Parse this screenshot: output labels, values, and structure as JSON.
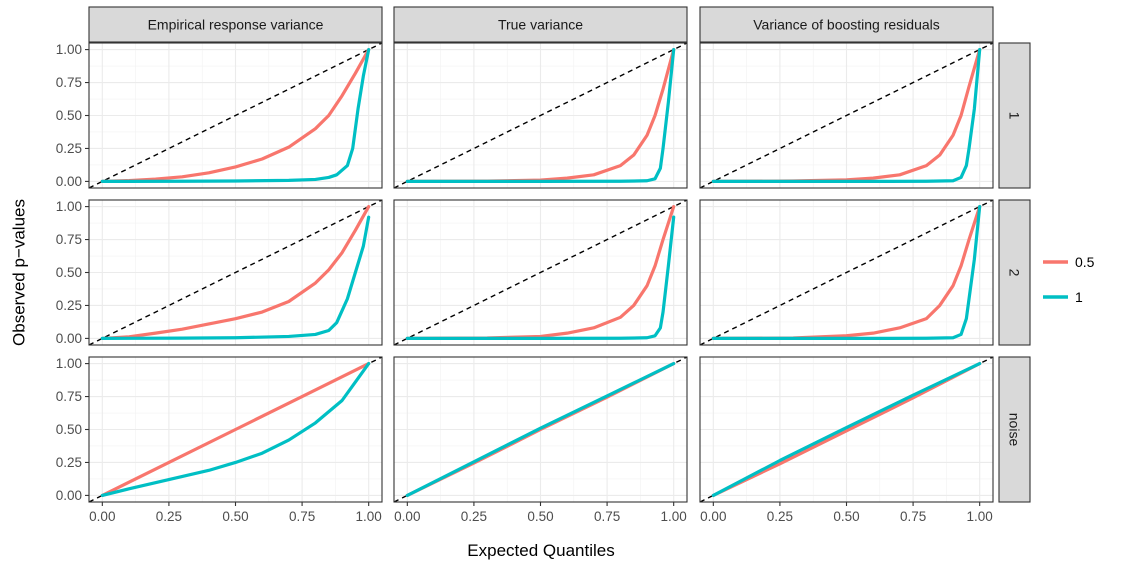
{
  "chart_data": {
    "type": "line",
    "xlabel": "Expected Quantiles",
    "ylabel": "Observed p−values",
    "xlim": [
      0,
      1
    ],
    "ylim": [
      0,
      1
    ],
    "x_ticks": [
      0,
      0.25,
      0.5,
      0.75,
      1
    ],
    "x_tick_labels": [
      "0.00",
      "0.25",
      "0.50",
      "0.75",
      "1.00"
    ],
    "y_ticks": [
      0,
      0.25,
      0.5,
      0.75,
      1
    ],
    "y_tick_labels": [
      "0.00",
      "0.25",
      "0.50",
      "0.75",
      "1.00"
    ],
    "grid": true,
    "legend_position": "right",
    "columns": [
      "Empirical response variance",
      "True variance",
      "Variance of boosting residuals"
    ],
    "rows": [
      "1",
      "2",
      "noise"
    ],
    "reference_line": "y = x (dashed)",
    "series_meta": [
      {
        "name": "0.5",
        "color": "#F8766D"
      },
      {
        "name": "1",
        "color": "#00BFC4"
      }
    ],
    "panels": [
      {
        "row": "1",
        "col": "Empirical response variance",
        "series": [
          {
            "name": "0.5",
            "points": [
              [
                0,
                0
              ],
              [
                0.1,
                0.006
              ],
              [
                0.2,
                0.018
              ],
              [
                0.3,
                0.035
              ],
              [
                0.4,
                0.065
              ],
              [
                0.5,
                0.11
              ],
              [
                0.6,
                0.17
              ],
              [
                0.7,
                0.26
              ],
              [
                0.8,
                0.4
              ],
              [
                0.85,
                0.5
              ],
              [
                0.9,
                0.65
              ],
              [
                0.95,
                0.82
              ],
              [
                1,
                1
              ]
            ]
          },
          {
            "name": "1",
            "points": [
              [
                0,
                0
              ],
              [
                0.3,
                0.001
              ],
              [
                0.5,
                0.003
              ],
              [
                0.7,
                0.008
              ],
              [
                0.8,
                0.015
              ],
              [
                0.85,
                0.03
              ],
              [
                0.88,
                0.05
              ],
              [
                0.92,
                0.12
              ],
              [
                0.94,
                0.25
              ],
              [
                0.96,
                0.55
              ],
              [
                0.98,
                0.8
              ],
              [
                1,
                1
              ]
            ]
          }
        ]
      },
      {
        "row": "1",
        "col": "True variance",
        "series": [
          {
            "name": "0.5",
            "points": [
              [
                0,
                0
              ],
              [
                0.3,
                0.002
              ],
              [
                0.5,
                0.01
              ],
              [
                0.6,
                0.025
              ],
              [
                0.7,
                0.05
              ],
              [
                0.8,
                0.12
              ],
              [
                0.85,
                0.2
              ],
              [
                0.9,
                0.35
              ],
              [
                0.93,
                0.5
              ],
              [
                0.96,
                0.7
              ],
              [
                1,
                1
              ]
            ]
          },
          {
            "name": "1",
            "points": [
              [
                0,
                0
              ],
              [
                0.5,
                0.0
              ],
              [
                0.8,
                0.001
              ],
              [
                0.9,
                0.005
              ],
              [
                0.93,
                0.02
              ],
              [
                0.95,
                0.1
              ],
              [
                0.96,
                0.25
              ],
              [
                0.98,
                0.6
              ],
              [
                1,
                1
              ]
            ]
          }
        ]
      },
      {
        "row": "1",
        "col": "Variance of boosting residuals",
        "series": [
          {
            "name": "0.5",
            "points": [
              [
                0,
                0
              ],
              [
                0.3,
                0.003
              ],
              [
                0.5,
                0.012
              ],
              [
                0.6,
                0.025
              ],
              [
                0.7,
                0.05
              ],
              [
                0.8,
                0.12
              ],
              [
                0.85,
                0.2
              ],
              [
                0.9,
                0.35
              ],
              [
                0.93,
                0.5
              ],
              [
                0.96,
                0.72
              ],
              [
                1,
                1
              ]
            ]
          },
          {
            "name": "1",
            "points": [
              [
                0,
                0
              ],
              [
                0.5,
                0.0
              ],
              [
                0.8,
                0.001
              ],
              [
                0.9,
                0.005
              ],
              [
                0.93,
                0.03
              ],
              [
                0.95,
                0.12
              ],
              [
                0.96,
                0.25
              ],
              [
                0.98,
                0.55
              ],
              [
                1,
                1
              ]
            ]
          }
        ]
      },
      {
        "row": "2",
        "col": "Empirical response variance",
        "series": [
          {
            "name": "0.5",
            "points": [
              [
                0,
                0
              ],
              [
                0.1,
                0.012
              ],
              [
                0.2,
                0.04
              ],
              [
                0.3,
                0.07
              ],
              [
                0.4,
                0.11
              ],
              [
                0.5,
                0.15
              ],
              [
                0.6,
                0.2
              ],
              [
                0.7,
                0.28
              ],
              [
                0.8,
                0.42
              ],
              [
                0.85,
                0.52
              ],
              [
                0.9,
                0.65
              ],
              [
                0.95,
                0.82
              ],
              [
                1,
                1
              ]
            ]
          },
          {
            "name": "1",
            "points": [
              [
                0,
                0
              ],
              [
                0.3,
                0.002
              ],
              [
                0.5,
                0.005
              ],
              [
                0.7,
                0.015
              ],
              [
                0.8,
                0.03
              ],
              [
                0.85,
                0.06
              ],
              [
                0.88,
                0.12
              ],
              [
                0.92,
                0.3
              ],
              [
                0.95,
                0.5
              ],
              [
                0.98,
                0.7
              ],
              [
                1,
                0.92
              ]
            ]
          }
        ]
      },
      {
        "row": "2",
        "col": "True variance",
        "series": [
          {
            "name": "0.5",
            "points": [
              [
                0,
                0
              ],
              [
                0.3,
                0.003
              ],
              [
                0.5,
                0.015
              ],
              [
                0.6,
                0.04
              ],
              [
                0.7,
                0.08
              ],
              [
                0.8,
                0.16
              ],
              [
                0.85,
                0.25
              ],
              [
                0.9,
                0.4
              ],
              [
                0.93,
                0.55
              ],
              [
                0.96,
                0.75
              ],
              [
                1,
                1
              ]
            ]
          },
          {
            "name": "1",
            "points": [
              [
                0,
                0
              ],
              [
                0.5,
                0.0
              ],
              [
                0.8,
                0.001
              ],
              [
                0.9,
                0.005
              ],
              [
                0.93,
                0.02
              ],
              [
                0.95,
                0.08
              ],
              [
                0.96,
                0.2
              ],
              [
                0.98,
                0.55
              ],
              [
                1,
                0.92
              ]
            ]
          }
        ]
      },
      {
        "row": "2",
        "col": "Variance of boosting residuals",
        "series": [
          {
            "name": "0.5",
            "points": [
              [
                0,
                0
              ],
              [
                0.3,
                0.003
              ],
              [
                0.5,
                0.02
              ],
              [
                0.6,
                0.04
              ],
              [
                0.7,
                0.08
              ],
              [
                0.8,
                0.15
              ],
              [
                0.85,
                0.25
              ],
              [
                0.9,
                0.4
              ],
              [
                0.93,
                0.55
              ],
              [
                0.96,
                0.75
              ],
              [
                1,
                1
              ]
            ]
          },
          {
            "name": "1",
            "points": [
              [
                0,
                0
              ],
              [
                0.5,
                0.0
              ],
              [
                0.8,
                0.001
              ],
              [
                0.9,
                0.005
              ],
              [
                0.93,
                0.03
              ],
              [
                0.95,
                0.15
              ],
              [
                0.96,
                0.3
              ],
              [
                0.98,
                0.6
              ],
              [
                1,
                1
              ]
            ]
          }
        ]
      },
      {
        "row": "noise",
        "col": "Empirical response variance",
        "series": [
          {
            "name": "0.5",
            "points": [
              [
                0,
                0
              ],
              [
                0.25,
                0.25
              ],
              [
                0.5,
                0.5
              ],
              [
                0.75,
                0.75
              ],
              [
                1,
                1
              ]
            ]
          },
          {
            "name": "1",
            "points": [
              [
                0,
                0
              ],
              [
                0.1,
                0.05
              ],
              [
                0.25,
                0.12
              ],
              [
                0.4,
                0.19
              ],
              [
                0.5,
                0.25
              ],
              [
                0.6,
                0.32
              ],
              [
                0.7,
                0.42
              ],
              [
                0.8,
                0.55
              ],
              [
                0.9,
                0.72
              ],
              [
                1,
                1
              ]
            ]
          }
        ]
      },
      {
        "row": "noise",
        "col": "True variance",
        "series": [
          {
            "name": "0.5",
            "points": [
              [
                0,
                0
              ],
              [
                0.25,
                0.245
              ],
              [
                0.5,
                0.5
              ],
              [
                0.75,
                0.745
              ],
              [
                1,
                1
              ]
            ]
          },
          {
            "name": "1",
            "points": [
              [
                0,
                0
              ],
              [
                0.25,
                0.255
              ],
              [
                0.5,
                0.51
              ],
              [
                0.75,
                0.755
              ],
              [
                1,
                1
              ]
            ]
          }
        ]
      },
      {
        "row": "noise",
        "col": "Variance of boosting residuals",
        "series": [
          {
            "name": "0.5",
            "points": [
              [
                0,
                0
              ],
              [
                0.25,
                0.24
              ],
              [
                0.5,
                0.49
              ],
              [
                0.75,
                0.74
              ],
              [
                1,
                1
              ]
            ]
          },
          {
            "name": "1",
            "points": [
              [
                0,
                0
              ],
              [
                0.25,
                0.265
              ],
              [
                0.5,
                0.515
              ],
              [
                0.75,
                0.76
              ],
              [
                1,
                1
              ]
            ]
          }
        ]
      }
    ]
  }
}
